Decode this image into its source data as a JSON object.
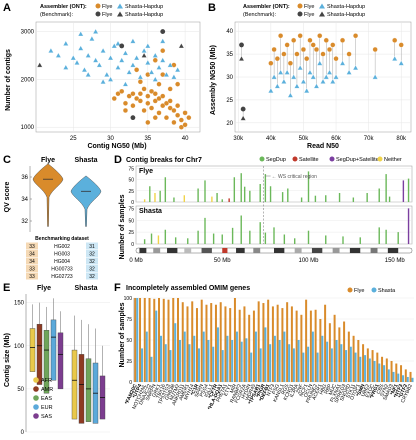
{
  "colors": {
    "flye": "#D98B2B",
    "shasta": "#5BB0DC",
    "benchmark": "#444444",
    "grid": "#e6e6e6",
    "segdup": "#6BB85A",
    "satellite": "#C0392B",
    "segdup_satellite": "#7B3FA0",
    "neither": "#F0D34A"
  },
  "panelA": {
    "letter": "A",
    "legend": {
      "assembler_label": "Assembler (ONT):",
      "benchmark_label": "(Benchmark):",
      "flye": "Flye",
      "shasta": "Shasta-Hapdup"
    },
    "chart_data": {
      "type": "scatter",
      "xlabel": "Contig NG50 (Mb)",
      "ylabel": "Number of contigs",
      "xlim": [
        20,
        42
      ],
      "ylim": [
        900,
        3200
      ],
      "xticks": [
        "25",
        "30",
        "35",
        "40"
      ],
      "yticks": [
        "1000",
        "2000",
        "3000"
      ],
      "series": [
        {
          "name": "Flye",
          "points": [
            [
              30.5,
              1600
            ],
            [
              31,
              1700
            ],
            [
              31.5,
              1750
            ],
            [
              32,
              1500
            ],
            [
              32.5,
              1650
            ],
            [
              33,
              1700
            ],
            [
              33,
              1450
            ],
            [
              33.5,
              1600
            ],
            [
              34,
              1550
            ],
            [
              34,
              1700
            ],
            [
              34.5,
              1800
            ],
            [
              35,
              1500
            ],
            [
              35,
              1650
            ],
            [
              35.5,
              1400
            ],
            [
              35.5,
              1750
            ],
            [
              36,
              1550
            ],
            [
              36,
              1700
            ],
            [
              36.5,
              1600
            ],
            [
              36.5,
              1300
            ],
            [
              37,
              1450
            ],
            [
              37,
              1650
            ],
            [
              37.5,
              1500
            ],
            [
              37.5,
              1200
            ],
            [
              38,
              1400
            ],
            [
              38,
              1550
            ],
            [
              38.5,
              1350
            ],
            [
              38.5,
              1100
            ],
            [
              39,
              1250
            ],
            [
              39,
              1450
            ],
            [
              39.5,
              1000
            ],
            [
              39.5,
              1150
            ],
            [
              40,
              1300
            ],
            [
              40,
              1050
            ],
            [
              36,
              2400
            ],
            [
              37,
              2600
            ],
            [
              38.5,
              2300
            ],
            [
              36.5,
              1900
            ],
            [
              35,
              2100
            ],
            [
              39,
              1900
            ],
            [
              34,
              1950
            ],
            [
              33.5,
              2200
            ],
            [
              37,
              2100
            ],
            [
              38,
              1800
            ],
            [
              40.5,
              1200
            ],
            [
              36,
              1200
            ],
            [
              34.5,
              1350
            ],
            [
              32,
              1350
            ],
            [
              35,
              1100
            ]
          ]
        },
        {
          "name": "Shasta-Hapdup",
          "points": [
            [
              22,
              2600
            ],
            [
              23,
              2500
            ],
            [
              24,
              2750
            ],
            [
              25,
              2450
            ],
            [
              25.5,
              2350
            ],
            [
              26,
              2650
            ],
            [
              26.5,
              2200
            ],
            [
              27,
              2500
            ],
            [
              27.5,
              2850
            ],
            [
              28,
              2400
            ],
            [
              28.5,
              2300
            ],
            [
              29,
              2600
            ],
            [
              29.5,
              2100
            ],
            [
              30,
              2450
            ],
            [
              30.5,
              2700
            ],
            [
              31,
              2250
            ],
            [
              31.5,
              2400
            ],
            [
              32,
              2550
            ],
            [
              32.5,
              2150
            ],
            [
              33,
              2300
            ],
            [
              33.5,
              2450
            ],
            [
              34,
              2050
            ],
            [
              34.5,
              2600
            ],
            [
              35,
              2350
            ],
            [
              35.5,
              2150
            ],
            [
              36,
              2500
            ],
            [
              36.5,
              2250
            ],
            [
              37,
              2400
            ],
            [
              37.5,
              2100
            ],
            [
              38,
              2300
            ],
            [
              38.5,
              2050
            ],
            [
              39,
              2200
            ],
            [
              27,
              2100
            ],
            [
              29,
              1950
            ],
            [
              24,
              2250
            ],
            [
              31,
              2750
            ],
            [
              33,
              2800
            ],
            [
              35,
              2700
            ],
            [
              37,
              2800
            ],
            [
              30,
              2000
            ],
            [
              32,
              1900
            ],
            [
              26,
              2950
            ],
            [
              28,
              3000
            ],
            [
              36,
              2000
            ]
          ]
        },
        {
          "name": "Benchmark Flye",
          "points": [
            [
              31.5,
              2700
            ],
            [
              33,
              1200
            ],
            [
              37,
              3000
            ]
          ]
        },
        {
          "name": "Benchmark Shasta-Hapdup",
          "points": [
            [
              20.5,
              2300
            ],
            [
              34.5,
              2500
            ],
            [
              39.5,
              2700
            ]
          ]
        }
      ]
    }
  },
  "panelB": {
    "letter": "B",
    "legend": {
      "assembler_label": "Assembler (ONT):",
      "benchmark_label": "(Benchmark):",
      "flye": "Flye",
      "shasta": "Shasta-Hapdup"
    },
    "chart_data": {
      "type": "scatter",
      "xlabel": "Read N50",
      "ylabel": "Assembly NG50 (Mb)",
      "xlim": [
        29000,
        83000
      ],
      "ylim": [
        18,
        42
      ],
      "xticks": [
        "30k",
        "40k",
        "50k",
        "60k",
        "70k",
        "80k"
      ],
      "yticks": [
        "20",
        "25",
        "30",
        "35",
        "40"
      ],
      "pairs": [
        [
          40000,
          33,
          27
        ],
        [
          41000,
          36,
          30
        ],
        [
          42000,
          34,
          28
        ],
        [
          43000,
          39,
          31
        ],
        [
          44000,
          35,
          29
        ],
        [
          45000,
          37,
          31
        ],
        [
          46000,
          33,
          26
        ],
        [
          47000,
          38,
          30
        ],
        [
          48000,
          35,
          28
        ],
        [
          49000,
          39,
          32
        ],
        [
          50000,
          36,
          29
        ],
        [
          51000,
          34,
          27
        ],
        [
          52000,
          38,
          31
        ],
        [
          53000,
          37,
          30
        ],
        [
          54000,
          36,
          28
        ],
        [
          55000,
          39,
          33
        ],
        [
          56000,
          35,
          29
        ],
        [
          57000,
          38,
          30
        ],
        [
          58000,
          36,
          31
        ],
        [
          59000,
          37,
          29
        ],
        [
          60000,
          34,
          30
        ],
        [
          62000,
          38,
          33
        ],
        [
          64000,
          35,
          31
        ],
        [
          66000,
          39,
          32
        ],
        [
          72000,
          36,
          30
        ],
        [
          78000,
          38,
          34
        ],
        [
          80000,
          37,
          33
        ]
      ],
      "benchmark": [
        [
          31000,
          37,
          34
        ],
        [
          31500,
          23,
          21
        ]
      ]
    }
  },
  "panelC": {
    "letter": "C",
    "flye": "Flye",
    "shasta": "Shasta",
    "ylabel": "QV score",
    "yticks": [
      "32",
      "34",
      "36"
    ],
    "chart_data": {
      "type": "violin",
      "series": [
        {
          "name": "Flye",
          "median": 35.8
        },
        {
          "name": "Shasta",
          "median": 34.7
        }
      ]
    },
    "table": {
      "title": "Benchmarking dataset",
      "rows": [
        [
          "33",
          "HG002",
          "31"
        ],
        [
          "34",
          "HG003",
          "32"
        ],
        [
          "34",
          "HG004",
          "32"
        ],
        [
          "33",
          "HG00733",
          "32"
        ],
        [
          "33",
          "HG02723",
          "32"
        ]
      ]
    }
  },
  "panelD": {
    "letter": "D",
    "title": "Contig breaks for Chr7",
    "legend": [
      "SegDup",
      "Satellite",
      "SegDup+Satellite",
      "Neither"
    ],
    "annotation": "WS critical region",
    "ylabel": "Number of samples",
    "flye_label": "Flye",
    "shasta_label": "Shasta",
    "yticks": [
      "0",
      "25",
      "50",
      "75"
    ],
    "xticks": [
      "0 Mb",
      "50 Mb",
      "100 Mb",
      "150 Mb"
    ],
    "chart_data": {
      "type": "bar",
      "flye": [
        [
          5,
          6,
          "n"
        ],
        [
          8,
          35,
          "s"
        ],
        [
          11,
          20,
          "n"
        ],
        [
          14,
          25,
          "s"
        ],
        [
          17,
          55,
          "s"
        ],
        [
          22,
          10,
          "s"
        ],
        [
          28,
          15,
          "n"
        ],
        [
          36,
          30,
          "s"
        ],
        [
          40,
          48,
          "s"
        ],
        [
          44,
          12,
          "n"
        ],
        [
          47,
          20,
          "s"
        ],
        [
          50,
          6,
          "s"
        ],
        [
          54,
          8,
          "t"
        ],
        [
          57,
          55,
          "s"
        ],
        [
          61,
          64,
          "s"
        ],
        [
          63,
          34,
          "s"
        ],
        [
          66,
          25,
          "s"
        ],
        [
          72,
          40,
          "s"
        ],
        [
          75,
          62,
          "s"
        ],
        [
          78,
          35,
          "s"
        ],
        [
          85,
          22,
          "s"
        ],
        [
          88,
          30,
          "s"
        ],
        [
          96,
          10,
          "s"
        ],
        [
          100,
          68,
          "s"
        ],
        [
          104,
          14,
          "s"
        ],
        [
          110,
          15,
          "s"
        ],
        [
          118,
          20,
          "s"
        ],
        [
          126,
          10,
          "s"
        ],
        [
          134,
          20,
          "s"
        ],
        [
          141,
          30,
          "s"
        ],
        [
          145,
          62,
          "s"
        ],
        [
          147,
          12,
          "s"
        ],
        [
          155,
          48,
          "p"
        ],
        [
          158,
          52,
          "s"
        ]
      ],
      "shasta": [
        [
          5,
          10,
          "s"
        ],
        [
          9,
          22,
          "s"
        ],
        [
          13,
          18,
          "n"
        ],
        [
          17,
          30,
          "s"
        ],
        [
          23,
          14,
          "s"
        ],
        [
          30,
          12,
          "s"
        ],
        [
          36,
          28,
          "s"
        ],
        [
          40,
          55,
          "s"
        ],
        [
          45,
          22,
          "s"
        ],
        [
          50,
          20,
          "s"
        ],
        [
          56,
          34,
          "s"
        ],
        [
          61,
          60,
          "s"
        ],
        [
          66,
          28,
          "s"
        ],
        [
          72,
          46,
          "s"
        ],
        [
          75,
          24,
          "s"
        ],
        [
          80,
          35,
          "s"
        ],
        [
          86,
          20,
          "s"
        ],
        [
          92,
          12,
          "s"
        ],
        [
          100,
          28,
          "s"
        ],
        [
          110,
          18,
          "s"
        ],
        [
          120,
          16,
          "s"
        ],
        [
          130,
          14,
          "s"
        ],
        [
          141,
          35,
          "s"
        ],
        [
          145,
          30,
          "s"
        ],
        [
          152,
          25,
          "s"
        ],
        [
          158,
          75,
          "p"
        ]
      ]
    }
  },
  "panelE": {
    "letter": "E",
    "flye": "Flye",
    "shasta": "Shasta",
    "ylabel": "Contig size (Mb)",
    "yticks": [
      "0",
      "50",
      "100",
      "150"
    ],
    "legend": [
      "AFR",
      "AMR",
      "EAS",
      "EUR",
      "SAS"
    ],
    "legend_colors": [
      "#E9C84A",
      "#8E3A22",
      "#6FA55A",
      "#5BA9DA",
      "#7C3D8F"
    ],
    "chart_data": {
      "type": "box",
      "flye": [
        [
          70,
          98,
          120,
          148
        ],
        [
          55,
          100,
          125,
          150
        ],
        [
          45,
          95,
          118,
          145
        ],
        [
          60,
          110,
          130,
          155
        ],
        [
          50,
          90,
          115,
          140
        ]
      ],
      "shasta": [
        [
          15,
          60,
          95,
          135
        ],
        [
          10,
          55,
          90,
          130
        ],
        [
          12,
          50,
          85,
          125
        ],
        [
          10,
          45,
          80,
          120
        ],
        [
          15,
          40,
          65,
          100
        ]
      ]
    }
  },
  "panelF": {
    "letter": "F",
    "title": "Incompletely assembled OMIM genes",
    "legend": [
      "Flye",
      "Shasta"
    ],
    "ylabel": "Number of samples",
    "yticks": [
      "0",
      "25",
      "50",
      "75",
      "100"
    ],
    "chart_data": {
      "type": "bar",
      "genes": [
        "*FAM20C",
        "*UTP4",
        "NOTCH2NL",
        "DNAJC22",
        "SNRPN",
        "GRK1",
        "TBX16",
        "TP53TG3",
        "GNB3B",
        "NUTM2",
        "ANKRD11",
        "AMER1",
        "MYH14",
        "*C1R",
        "SPRN",
        "PSG4",
        "IGLL1",
        "*CFTR",
        "*HLA-DQA1",
        "PHETA1",
        "ETY1",
        "MIR",
        "RANBP2",
        "FCGR2A",
        "HYDIN",
        "WDR45",
        "*TPSAB1",
        "*PIGR",
        "*DEFB1",
        "NTF3",
        "PSG",
        "KANSL1",
        "RGS",
        "KCNQ1",
        "IL3RA",
        "ZNF",
        "NCF1",
        "OCLN",
        "PRUNE2",
        "ACER1",
        "HBG",
        "RBP",
        "MUC",
        "PLXNA1",
        "SPRED3",
        "SNORD",
        "STK11",
        "OTOP1",
        "*SMN",
        "UBE2",
        "EXOC",
        "*FRG1",
        "CBS",
        "SYN2",
        "SMAD3",
        "*NF1",
        "*NTF3",
        "*GTF2",
        "CRYBB2"
      ],
      "flye": [
        100,
        100,
        100,
        100,
        99,
        100,
        99,
        98,
        100,
        100,
        95,
        90,
        96,
        88,
        98,
        92,
        94,
        92,
        95,
        90,
        88,
        100,
        86,
        90,
        80,
        85,
        96,
        94,
        98,
        90,
        92,
        88,
        95,
        90,
        85,
        80,
        98,
        85,
        86,
        75,
        92,
        70,
        80,
        65,
        72,
        60,
        55,
        50,
        45,
        40,
        38,
        35,
        30,
        28,
        25,
        22,
        20,
        15,
        12
      ],
      "shasta": [
        100,
        40,
        60,
        30,
        85,
        55,
        45,
        38,
        70,
        50,
        60,
        45,
        55,
        40,
        60,
        50,
        42,
        65,
        38,
        55,
        50,
        60,
        48,
        52,
        35,
        60,
        40,
        65,
        45,
        55,
        50,
        60,
        45,
        40,
        50,
        35,
        42,
        60,
        35,
        55,
        48,
        40,
        50,
        45,
        38,
        42,
        35,
        30,
        32,
        28,
        25,
        22,
        20,
        15,
        12,
        10,
        8,
        6,
        5
      ]
    }
  }
}
